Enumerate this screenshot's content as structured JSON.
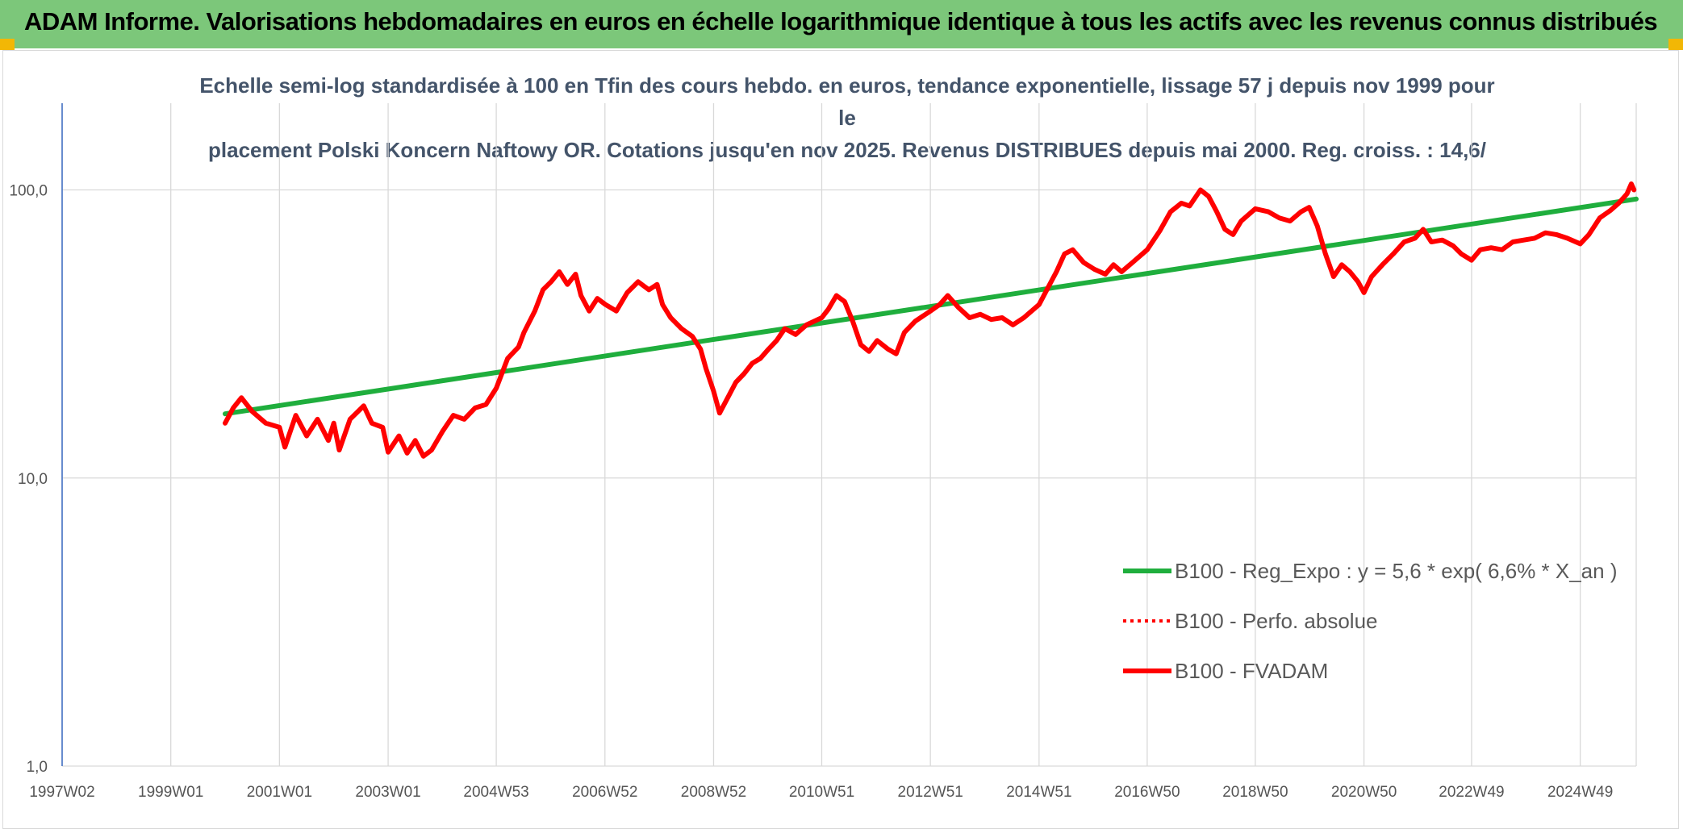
{
  "header": {
    "title": "ADAM Informe. Valorisations hebdomadaires en euros en échelle logarithmique identique à tous les actifs avec les revenus connus distribués"
  },
  "chart_data": {
    "type": "line",
    "title_line1": "Echelle semi-log standardisée à 100 en Tfin des cours hebdo. en euros, tendance exponentielle, lissage 57 j depuis nov 1999 pour le",
    "title_line2": "placement Polski Koncern Naftowy OR. Cotations jusqu'en nov 2025. Revenus DISTRIBUES depuis mai 2000. Reg. croiss. : 14,6/",
    "y_scale": "log",
    "ylim": [
      1,
      200
    ],
    "y_ticks": [
      1,
      10,
      100
    ],
    "y_tick_labels": [
      "1,0",
      "10,0",
      "100,0"
    ],
    "x_range": [
      1997.0,
      2025.97
    ],
    "x_ticks": [
      1997.0,
      1999.0,
      2001.0,
      2003.0,
      2004.99,
      2006.99,
      2008.99,
      2010.98,
      2012.98,
      2014.98,
      2016.97,
      2018.96,
      2020.96,
      2022.94,
      2024.94
    ],
    "x_tick_labels": [
      "1997W02",
      "1999W01",
      "2001W01",
      "2003W01",
      "2004W53",
      "2006W52",
      "2008W52",
      "2010W51",
      "2012W51",
      "2014W51",
      "2016W50",
      "2018W50",
      "2020W50",
      "2022W49",
      "2024W49"
    ],
    "grid": true,
    "legend_position": "right",
    "series": [
      {
        "name": "B100 - Reg_Expo : y = 5,6 * exp( 6,6% *  X_an )",
        "color": "#1fae3d",
        "style": "solid",
        "points": [
          [
            2000.0,
            16.7
          ],
          [
            2025.97,
            93.0
          ]
        ]
      },
      {
        "name": "B100 - Perfo. absolue",
        "color": "#ff0000",
        "style": "dotted",
        "points": []
      },
      {
        "name": "B100 - FVADAM",
        "color": "#ff0000",
        "style": "solid",
        "points": [
          [
            2000.0,
            15.5
          ],
          [
            2000.15,
            17.5
          ],
          [
            2000.3,
            19.0
          ],
          [
            2000.5,
            17.0
          ],
          [
            2000.75,
            15.5
          ],
          [
            2001.0,
            15.0
          ],
          [
            2001.1,
            12.8
          ],
          [
            2001.3,
            16.5
          ],
          [
            2001.5,
            14.0
          ],
          [
            2001.7,
            16.0
          ],
          [
            2001.9,
            13.5
          ],
          [
            2002.0,
            15.5
          ],
          [
            2002.1,
            12.5
          ],
          [
            2002.3,
            16.0
          ],
          [
            2002.55,
            17.8
          ],
          [
            2002.7,
            15.5
          ],
          [
            2002.9,
            15.0
          ],
          [
            2003.0,
            12.3
          ],
          [
            2003.2,
            14.0
          ],
          [
            2003.35,
            12.2
          ],
          [
            2003.5,
            13.5
          ],
          [
            2003.65,
            11.9
          ],
          [
            2003.8,
            12.5
          ],
          [
            2004.0,
            14.5
          ],
          [
            2004.2,
            16.5
          ],
          [
            2004.4,
            16.0
          ],
          [
            2004.6,
            17.5
          ],
          [
            2004.8,
            18.0
          ],
          [
            2004.99,
            20.5
          ],
          [
            2005.2,
            26.0
          ],
          [
            2005.4,
            28.5
          ],
          [
            2005.5,
            32.0
          ],
          [
            2005.7,
            38.0
          ],
          [
            2005.85,
            45.0
          ],
          [
            2006.0,
            48.0
          ],
          [
            2006.15,
            52.0
          ],
          [
            2006.3,
            47.0
          ],
          [
            2006.45,
            51.0
          ],
          [
            2006.55,
            43.0
          ],
          [
            2006.7,
            38.0
          ],
          [
            2006.85,
            42.0
          ],
          [
            2007.0,
            40.0
          ],
          [
            2007.2,
            38.0
          ],
          [
            2007.4,
            44.0
          ],
          [
            2007.6,
            48.0
          ],
          [
            2007.8,
            45.0
          ],
          [
            2007.95,
            47.0
          ],
          [
            2008.05,
            40.0
          ],
          [
            2008.2,
            36.0
          ],
          [
            2008.4,
            33.0
          ],
          [
            2008.6,
            31.0
          ],
          [
            2008.75,
            28.0
          ],
          [
            2008.85,
            24.0
          ],
          [
            2008.99,
            20.0
          ],
          [
            2009.1,
            16.8
          ],
          [
            2009.25,
            19.0
          ],
          [
            2009.4,
            21.5
          ],
          [
            2009.55,
            23.0
          ],
          [
            2009.7,
            25.0
          ],
          [
            2009.85,
            26.0
          ],
          [
            2010.0,
            28.0
          ],
          [
            2010.15,
            30.0
          ],
          [
            2010.3,
            33.0
          ],
          [
            2010.5,
            31.5
          ],
          [
            2010.7,
            34.0
          ],
          [
            2010.98,
            36.0
          ],
          [
            2011.1,
            38.5
          ],
          [
            2011.25,
            43.0
          ],
          [
            2011.4,
            41.0
          ],
          [
            2011.55,
            35.0
          ],
          [
            2011.7,
            29.0
          ],
          [
            2011.85,
            27.5
          ],
          [
            2012.0,
            30.0
          ],
          [
            2012.2,
            28.0
          ],
          [
            2012.35,
            27.0
          ],
          [
            2012.5,
            32.0
          ],
          [
            2012.7,
            35.0
          ],
          [
            2012.98,
            38.0
          ],
          [
            2013.15,
            40.0
          ],
          [
            2013.3,
            43.0
          ],
          [
            2013.5,
            39.0
          ],
          [
            2013.7,
            36.0
          ],
          [
            2013.9,
            37.0
          ],
          [
            2014.1,
            35.5
          ],
          [
            2014.3,
            36.0
          ],
          [
            2014.5,
            34.0
          ],
          [
            2014.7,
            36.0
          ],
          [
            2014.98,
            40.0
          ],
          [
            2015.15,
            46.0
          ],
          [
            2015.3,
            52.0
          ],
          [
            2015.45,
            60.0
          ],
          [
            2015.6,
            62.0
          ],
          [
            2015.8,
            56.0
          ],
          [
            2016.0,
            53.0
          ],
          [
            2016.2,
            51.0
          ],
          [
            2016.35,
            55.0
          ],
          [
            2016.5,
            52.0
          ],
          [
            2016.7,
            56.0
          ],
          [
            2016.97,
            62.0
          ],
          [
            2017.2,
            72.0
          ],
          [
            2017.4,
            84.0
          ],
          [
            2017.6,
            90.0
          ],
          [
            2017.75,
            88.0
          ],
          [
            2017.95,
            100.0
          ],
          [
            2018.1,
            95.0
          ],
          [
            2018.25,
            84.0
          ],
          [
            2018.4,
            73.0
          ],
          [
            2018.55,
            70.0
          ],
          [
            2018.7,
            78.0
          ],
          [
            2018.96,
            86.0
          ],
          [
            2019.2,
            84.0
          ],
          [
            2019.4,
            80.0
          ],
          [
            2019.6,
            78.0
          ],
          [
            2019.8,
            84.0
          ],
          [
            2019.95,
            87.0
          ],
          [
            2020.1,
            75.0
          ],
          [
            2020.25,
            60.0
          ],
          [
            2020.4,
            50.0
          ],
          [
            2020.55,
            55.0
          ],
          [
            2020.7,
            52.0
          ],
          [
            2020.85,
            48.0
          ],
          [
            2020.96,
            44.0
          ],
          [
            2021.1,
            50.0
          ],
          [
            2021.3,
            55.0
          ],
          [
            2021.5,
            60.0
          ],
          [
            2021.7,
            66.0
          ],
          [
            2021.9,
            68.0
          ],
          [
            2022.05,
            73.0
          ],
          [
            2022.2,
            66.0
          ],
          [
            2022.4,
            67.0
          ],
          [
            2022.6,
            64.0
          ],
          [
            2022.75,
            60.0
          ],
          [
            2022.94,
            57.0
          ],
          [
            2023.1,
            62.0
          ],
          [
            2023.3,
            63.0
          ],
          [
            2023.5,
            62.0
          ],
          [
            2023.7,
            66.0
          ],
          [
            2023.9,
            67.0
          ],
          [
            2024.1,
            68.0
          ],
          [
            2024.3,
            71.0
          ],
          [
            2024.5,
            70.0
          ],
          [
            2024.7,
            68.0
          ],
          [
            2024.94,
            65.0
          ],
          [
            2025.1,
            70.0
          ],
          [
            2025.3,
            80.0
          ],
          [
            2025.5,
            85.0
          ],
          [
            2025.65,
            90.0
          ],
          [
            2025.8,
            97.0
          ],
          [
            2025.88,
            105.0
          ],
          [
            2025.93,
            100.0
          ]
        ]
      }
    ]
  }
}
